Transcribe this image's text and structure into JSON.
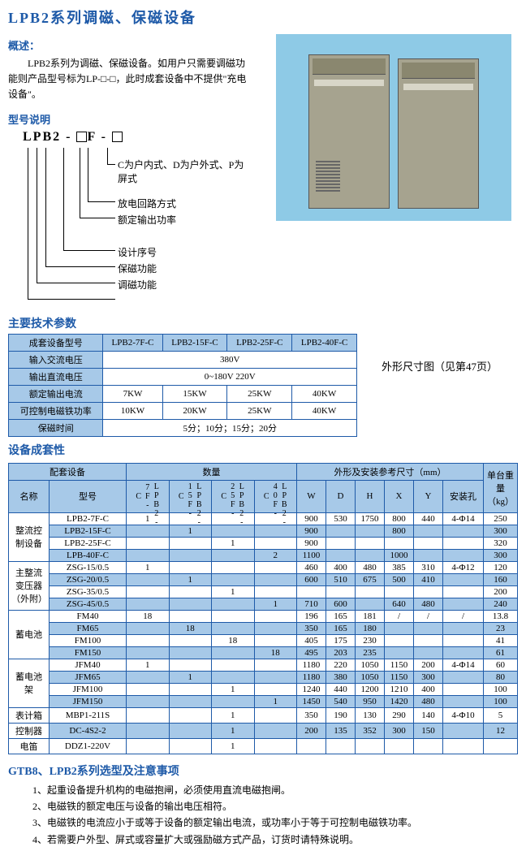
{
  "title": "LPB2系列调磁、保磁设备",
  "overview": {
    "heading": "概述：",
    "text": "LPB2系列为调磁、保磁设备。如用户只需要调磁功能则产品型号标为LP-□-□，此时成套设备中不提供\"充电设备\"。"
  },
  "model": {
    "heading": "型号说明",
    "code_prefix": "LPB2 - ",
    "code_mid": "F - ",
    "descriptors": [
      "C为户内式、D为户外式、P为屏式",
      "放电回路方式",
      "额定输出功率",
      "设计序号",
      "保磁功能",
      "调磁功能"
    ]
  },
  "spec_table": {
    "heading": "主要技术参数",
    "side_note": "外形尺寸图（见第47页）",
    "headers": [
      "成套设备型号",
      "LPB2-7F-C",
      "LPB2-15F-C",
      "LPB2-25F-C",
      "LPB2-40F-C"
    ],
    "rows": [
      {
        "label": "输入交流电压",
        "span": "380V"
      },
      {
        "label": "输出直流电压",
        "span": "0~180V  220V"
      },
      {
        "label": "额定输出电流",
        "cells": [
          "7KW",
          "15KW",
          "25KW",
          "40KW"
        ]
      },
      {
        "label": "可控制电磁铁功率",
        "cells": [
          "10KW",
          "20KW",
          "25KW",
          "40KW"
        ]
      },
      {
        "label": "保磁时间",
        "span": "5分；10分；15分；20分"
      }
    ]
  },
  "equip_table": {
    "heading": "设备成套性",
    "group_headers": [
      "配套设备",
      "数量",
      "外形及安装参考尺寸（mm）",
      "单台重量（kg）"
    ],
    "sub_headers": {
      "name": "名称",
      "model": "型号",
      "qty": [
        "LPB2-7F-C",
        "LPB2-15F-C",
        "LPB2-25F-C",
        "LPB2-40F-C"
      ],
      "dims": [
        "W",
        "D",
        "H",
        "X",
        "Y",
        "安装孔"
      ]
    },
    "groups": [
      {
        "name": "整流控制设备",
        "rows": [
          {
            "model": "LPB2-7F-C",
            "qty": [
              "1",
              "",
              "",
              ""
            ],
            "W": "900",
            "D": "530",
            "H": "1750",
            "X": "800",
            "Y": "440",
            "hole": "4-Φ14",
            "wt": "250",
            "stripe": false
          },
          {
            "model": "LPB2-15F-C",
            "qty": [
              "",
              "1",
              "",
              ""
            ],
            "W": "900",
            "wt": "300",
            "stripe": true,
            "X": "800"
          },
          {
            "model": "LPB2-25F-C",
            "qty": [
              "",
              "",
              "1",
              ""
            ],
            "W": "900",
            "wt": "320",
            "stripe": false
          },
          {
            "model": "LPB-40F-C",
            "qty": [
              "",
              "",
              "",
              "2"
            ],
            "W": "1100",
            "X": "1000",
            "wt": "300",
            "stripe": true
          }
        ]
      },
      {
        "name": "主整流变压器（外附）",
        "rows": [
          {
            "model": "ZSG-15/0.5",
            "qty": [
              "1",
              "",
              "",
              ""
            ],
            "W": "460",
            "D": "400",
            "H": "480",
            "X": "385",
            "Y": "310",
            "hole": "4-Φ12",
            "wt": "120",
            "stripe": false
          },
          {
            "model": "ZSG-20/0.5",
            "qty": [
              "",
              "1",
              "",
              ""
            ],
            "W": "600",
            "D": "510",
            "H": "675",
            "X": "500",
            "Y": "410",
            "wt": "160",
            "stripe": true
          },
          {
            "model": "ZSG-35/0.5",
            "qty": [
              "",
              "",
              "1",
              ""
            ],
            "wt": "200",
            "stripe": false
          },
          {
            "model": "ZSG-45/0.5",
            "qty": [
              "",
              "",
              "",
              "1"
            ],
            "W": "710",
            "D": "600",
            "X": "640",
            "Y": "480",
            "wt": "240",
            "stripe": true
          }
        ]
      },
      {
        "name": "蓄电池",
        "rows": [
          {
            "model": "FM40",
            "qty": [
              "18",
              "",
              "",
              ""
            ],
            "W": "196",
            "D": "165",
            "H": "181",
            "X": "/",
            "Y": "/",
            "hole": "/",
            "wt": "13.8",
            "stripe": false
          },
          {
            "model": "FM65",
            "qty": [
              "",
              "18",
              "",
              ""
            ],
            "W": "350",
            "D": "165",
            "H": "180",
            "wt": "23",
            "stripe": true
          },
          {
            "model": "FM100",
            "qty": [
              "",
              "",
              "18",
              ""
            ],
            "W": "405",
            "D": "175",
            "H": "230",
            "wt": "41",
            "stripe": false
          },
          {
            "model": "FM150",
            "qty": [
              "",
              "",
              "",
              "18"
            ],
            "W": "495",
            "D": "203",
            "H": "235",
            "wt": "61",
            "stripe": true
          }
        ]
      },
      {
        "name": "蓄电池架",
        "rows": [
          {
            "model": "JFM40",
            "qty": [
              "1",
              "",
              "",
              ""
            ],
            "W": "1180",
            "D": "220",
            "H": "1050",
            "X": "1150",
            "Y": "200",
            "hole": "4-Φ14",
            "wt": "60",
            "stripe": false
          },
          {
            "model": "JFM65",
            "qty": [
              "",
              "1",
              "",
              ""
            ],
            "W": "1180",
            "D": "380",
            "H": "1050",
            "X": "1150",
            "Y": "300",
            "wt": "80",
            "stripe": true
          },
          {
            "model": "JFM100",
            "qty": [
              "",
              "",
              "1",
              ""
            ],
            "W": "1240",
            "D": "440",
            "H": "1200",
            "X": "1210",
            "Y": "400",
            "wt": "100",
            "stripe": false
          },
          {
            "model": "JFM150",
            "qty": [
              "",
              "",
              "",
              "1"
            ],
            "W": "1450",
            "D": "540",
            "H": "950",
            "X": "1420",
            "Y": "480",
            "wt": "100",
            "stripe": true
          }
        ]
      },
      {
        "name": "表计箱",
        "rows": [
          {
            "model": "MBP1-211S",
            "qty": [
              "",
              "",
              "1",
              ""
            ],
            "W": "350",
            "D": "190",
            "H": "130",
            "X": "290",
            "Y": "140",
            "hole": "4-Φ10",
            "wt": "5",
            "stripe": false
          }
        ]
      },
      {
        "name": "控制器",
        "rows": [
          {
            "model": "DC-4S2-2",
            "qty": [
              "",
              "",
              "1",
              ""
            ],
            "W": "200",
            "D": "135",
            "H": "352",
            "X": "300",
            "Y": "150",
            "wt": "12",
            "stripe": true
          }
        ]
      },
      {
        "name": "电笛",
        "rows": [
          {
            "model": "DDZ1-220V",
            "qty": [
              "",
              "",
              "1",
              ""
            ],
            "W": "",
            "D": "",
            "H": "",
            "X": "",
            "Y": "",
            "hole": "",
            "wt": "",
            "stripe": false
          }
        ]
      }
    ]
  },
  "notes": {
    "heading": "GTB8、LPB2系列选型及注意事项",
    "items": [
      "1、起重设备提升机构的电磁抱闸，必须使用直流电磁抱闸。",
      "2、电磁铁的额定电压与设备的输出电压相符。",
      "3、电磁铁的电流应小于或等于设备的额定输出电流，或功率小于等于可控制电磁铁功率。",
      "4、若需要户外型、屏式或容量扩大或强励磁方式产品，订货时请特殊说明。"
    ]
  },
  "colors": {
    "heading_blue": "#1e5aa8",
    "table_border": "#1e5aa8",
    "table_header_bg": "#a7c9e8",
    "photo_bg": "#8ecae6",
    "cabinet": "#a6a38f"
  }
}
